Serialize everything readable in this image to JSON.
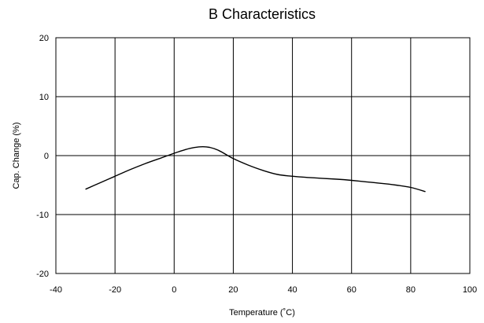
{
  "chart_data": {
    "type": "line",
    "title": "B Characteristics",
    "xlabel": "Temperature (˚C)",
    "ylabel": "Cap. Change (%)",
    "xlim": [
      -40,
      100
    ],
    "ylim": [
      -20,
      20
    ],
    "xticks": [
      -40,
      -20,
      0,
      20,
      40,
      60,
      80,
      100
    ],
    "yticks": [
      -20,
      -10,
      0,
      10,
      20
    ],
    "grid": true,
    "series": [
      {
        "color": "#000000",
        "x": [
          -30,
          -25,
          -20,
          -15,
          -10,
          -5,
          0,
          3,
          6,
          9,
          12,
          15,
          20,
          25,
          30,
          35,
          40,
          45,
          50,
          55,
          60,
          65,
          70,
          75,
          80,
          85
        ],
        "y": [
          -5.7,
          -4.6,
          -3.5,
          -2.4,
          -1.4,
          -0.5,
          0.4,
          0.9,
          1.3,
          1.5,
          1.4,
          0.9,
          -0.5,
          -1.6,
          -2.5,
          -3.2,
          -3.5,
          -3.7,
          -3.85,
          -4.0,
          -4.2,
          -4.45,
          -4.7,
          -5.0,
          -5.4,
          -6.1
        ]
      }
    ]
  }
}
